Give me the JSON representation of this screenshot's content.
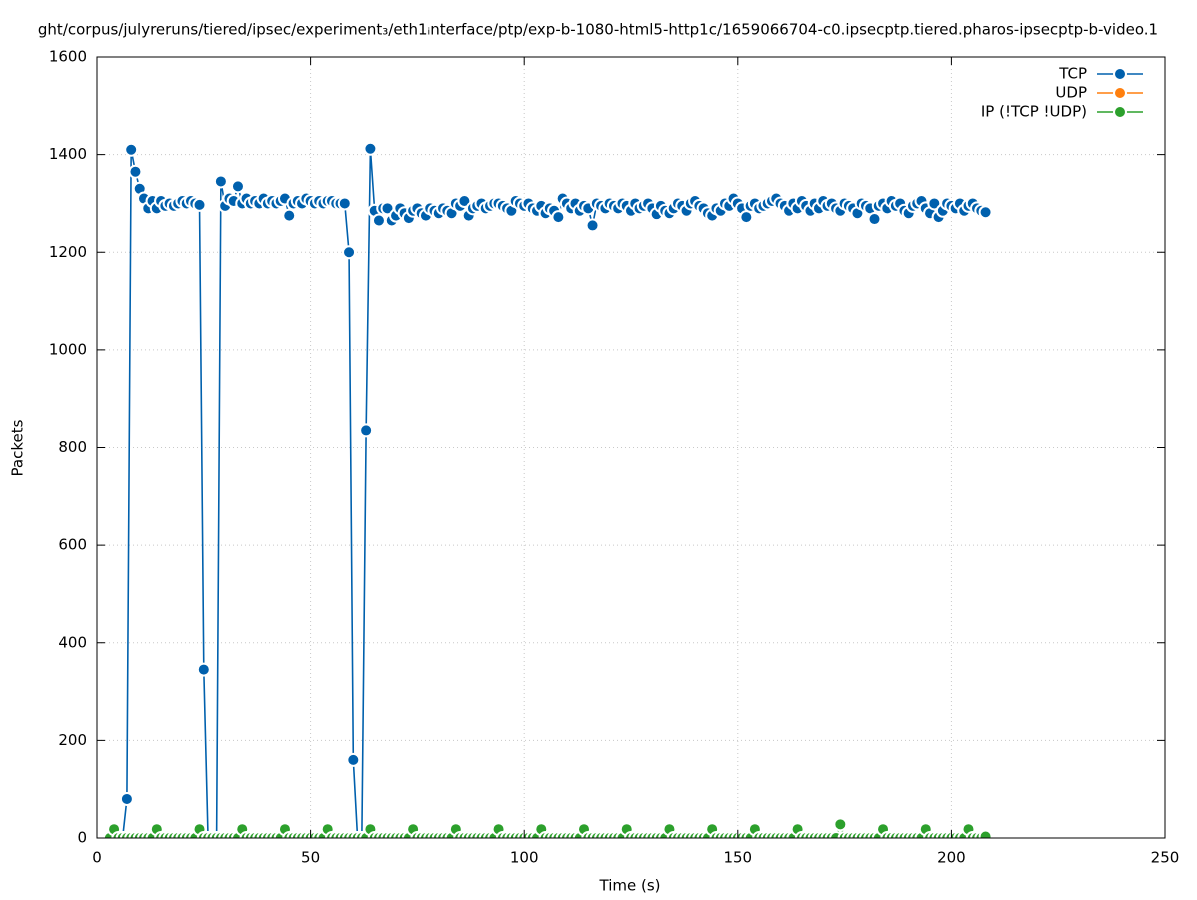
{
  "chart_data": {
    "type": "line",
    "title": "ght/corpus/julyreruns/tiered/ipsec/experiment₃/eth1ᵢnterface/ptp/exp-b-1080-html5-http1c/1659066704-c0.ipsecptp.tiered.pharos-ipsecptp-b-video.1",
    "x_label": "Time (s)",
    "y_label": "Packets",
    "xlim": [
      0,
      250
    ],
    "xticks": [
      0,
      50,
      100,
      150,
      200,
      250
    ],
    "ylim": [
      0,
      1600
    ],
    "yticks": [
      0,
      200,
      400,
      600,
      800,
      1000,
      1200,
      1400,
      1600
    ],
    "grid": true,
    "legend": "top-right",
    "x": [
      3,
      4,
      5,
      6,
      7,
      8,
      9,
      10,
      11,
      12,
      13,
      14,
      15,
      16,
      17,
      18,
      19,
      20,
      21,
      22,
      23,
      24,
      25,
      26,
      27,
      28,
      29,
      30,
      31,
      32,
      33,
      34,
      35,
      36,
      37,
      38,
      39,
      40,
      41,
      42,
      43,
      44,
      45,
      46,
      47,
      48,
      49,
      50,
      51,
      52,
      53,
      54,
      55,
      56,
      57,
      58,
      59,
      60,
      61,
      62,
      63,
      64,
      65,
      66,
      67,
      68,
      69,
      70,
      71,
      72,
      73,
      74,
      75,
      76,
      77,
      78,
      79,
      80,
      81,
      82,
      83,
      84,
      85,
      86,
      87,
      88,
      89,
      90,
      91,
      92,
      93,
      94,
      95,
      96,
      97,
      98,
      99,
      100,
      101,
      102,
      103,
      104,
      105,
      106,
      107,
      108,
      109,
      110,
      111,
      112,
      113,
      114,
      115,
      116,
      117,
      118,
      119,
      120,
      121,
      122,
      123,
      124,
      125,
      126,
      127,
      128,
      129,
      130,
      131,
      132,
      133,
      134,
      135,
      136,
      137,
      138,
      139,
      140,
      141,
      142,
      143,
      144,
      145,
      146,
      147,
      148,
      149,
      150,
      151,
      152,
      153,
      154,
      155,
      156,
      157,
      158,
      159,
      160,
      161,
      162,
      163,
      164,
      165,
      166,
      167,
      168,
      169,
      170,
      171,
      172,
      173,
      174,
      175,
      176,
      177,
      178,
      179,
      180,
      181,
      182,
      183,
      184,
      185,
      186,
      187,
      188,
      189,
      190,
      191,
      192,
      193,
      194,
      195,
      196,
      197,
      198,
      199,
      200,
      201,
      202,
      203,
      204,
      205,
      206,
      207,
      208
    ],
    "series": [
      {
        "name": "TCP",
        "color": "#0060ad",
        "values": [
          0,
          0,
          0,
          0,
          80,
          1410,
          1365,
          1330,
          1310,
          1290,
          1305,
          1290,
          1305,
          1295,
          1300,
          1295,
          1300,
          1305,
          1300,
          1305,
          1300,
          1297,
          345,
          0,
          0,
          0,
          1345,
          1295,
          1310,
          1305,
          1335,
          1300,
          1310,
          1300,
          1305,
          1300,
          1310,
          1300,
          1305,
          1300,
          1305,
          1310,
          1275,
          1300,
          1305,
          1300,
          1310,
          1305,
          1300,
          1305,
          1300,
          1305,
          1305,
          1300,
          1300,
          1300,
          1200,
          160,
          0,
          0,
          835,
          1412,
          1285,
          1265,
          1290,
          1290,
          1265,
          1275,
          1290,
          1280,
          1270,
          1285,
          1290,
          1280,
          1275,
          1290,
          1285,
          1280,
          1290,
          1285,
          1280,
          1300,
          1295,
          1305,
          1275,
          1290,
          1295,
          1300,
          1290,
          1295,
          1300,
          1300,
          1295,
          1290,
          1285,
          1305,
          1300,
          1295,
          1300,
          1290,
          1285,
          1295,
          1280,
          1290,
          1285,
          1272,
          1310,
          1300,
          1290,
          1300,
          1285,
          1295,
          1290,
          1255,
          1300,
          1295,
          1290,
          1300,
          1295,
          1290,
          1300,
          1295,
          1285,
          1300,
          1290,
          1295,
          1300,
          1290,
          1278,
          1295,
          1285,
          1280,
          1290,
          1300,
          1295,
          1285,
          1300,
          1305,
          1295,
          1290,
          1280,
          1275,
          1290,
          1285,
          1300,
          1295,
          1310,
          1300,
          1290,
          1272,
          1295,
          1300,
          1290,
          1295,
          1300,
          1305,
          1310,
          1300,
          1295,
          1285,
          1300,
          1290,
          1305,
          1295,
          1285,
          1300,
          1290,
          1305,
          1295,
          1300,
          1290,
          1285,
          1300,
          1295,
          1290,
          1280,
          1300,
          1295,
          1290,
          1268,
          1295,
          1300,
          1290,
          1305,
          1295,
          1300,
          1285,
          1280,
          1295,
          1300,
          1305,
          1290,
          1280,
          1300,
          1272,
          1285,
          1300,
          1295,
          1290,
          1300,
          1285,
          1295,
          1300,
          1290,
          1285,
          1282
        ]
      },
      {
        "name": "UDP",
        "color": "#ff7f0e",
        "values": [
          0,
          0,
          0,
          0,
          0,
          0,
          0,
          0,
          0,
          0,
          0,
          0,
          0,
          0,
          0,
          0,
          0,
          0,
          0,
          0,
          0,
          0,
          0,
          0,
          0,
          0,
          0,
          0,
          0,
          0,
          0,
          0,
          0,
          0,
          0,
          0,
          0,
          0,
          0,
          0,
          0,
          0,
          0,
          0,
          0,
          0,
          0,
          0,
          0,
          0,
          0,
          0,
          0,
          0,
          0,
          0,
          0,
          0,
          0,
          0,
          0,
          0,
          0,
          0,
          0,
          0,
          0,
          0,
          0,
          0,
          0,
          0,
          0,
          0,
          0,
          0,
          0,
          0,
          0,
          0,
          0,
          0,
          0,
          0,
          0,
          0,
          0,
          0,
          0,
          0,
          0,
          0,
          0,
          0,
          0,
          0,
          0,
          0,
          0,
          0,
          0,
          0,
          0,
          0,
          0,
          0,
          0,
          0,
          0,
          0,
          0,
          0,
          0,
          0,
          0,
          0,
          0,
          0,
          0,
          0,
          0,
          0,
          0,
          0,
          0,
          0,
          0,
          0,
          0,
          0,
          0,
          0,
          0,
          0,
          0,
          0,
          0,
          0,
          0,
          0,
          0,
          0,
          0,
          0,
          0,
          0,
          0,
          0,
          0,
          0,
          0,
          0,
          0,
          0,
          0,
          0,
          0,
          0,
          0,
          0,
          0,
          0,
          0,
          0,
          0,
          0,
          0,
          0,
          0,
          0,
          0,
          0,
          0,
          0,
          0,
          0,
          0,
          0,
          0,
          0,
          0,
          0,
          0,
          0,
          0,
          0,
          0,
          0,
          0,
          0,
          0,
          0,
          0,
          0,
          0,
          0,
          0,
          0,
          0,
          0,
          0,
          0,
          0,
          0,
          0,
          0
        ]
      },
      {
        "name": "IP (!TCP  !UDP)",
        "color": "#2ca02c",
        "values": [
          0,
          18,
          0,
          0,
          0,
          0,
          0,
          0,
          0,
          0,
          0,
          18,
          0,
          0,
          0,
          0,
          0,
          0,
          0,
          0,
          0,
          18,
          0,
          0,
          0,
          0,
          0,
          0,
          0,
          0,
          0,
          18,
          0,
          0,
          0,
          0,
          0,
          0,
          0,
          0,
          0,
          18,
          0,
          0,
          0,
          0,
          0,
          0,
          0,
          0,
          0,
          18,
          0,
          0,
          0,
          0,
          0,
          0,
          0,
          0,
          0,
          18,
          0,
          0,
          0,
          0,
          0,
          0,
          0,
          0,
          0,
          18,
          0,
          0,
          0,
          0,
          0,
          0,
          0,
          0,
          0,
          18,
          0,
          0,
          0,
          0,
          0,
          0,
          0,
          0,
          0,
          18,
          0,
          0,
          0,
          0,
          0,
          0,
          0,
          0,
          0,
          18,
          0,
          0,
          0,
          0,
          0,
          0,
          0,
          0,
          0,
          18,
          0,
          0,
          0,
          0,
          0,
          0,
          0,
          0,
          0,
          18,
          0,
          0,
          0,
          0,
          0,
          0,
          0,
          0,
          0,
          18,
          0,
          0,
          0,
          0,
          0,
          0,
          0,
          0,
          0,
          18,
          0,
          0,
          0,
          0,
          0,
          0,
          0,
          0,
          0,
          18,
          0,
          0,
          0,
          0,
          0,
          0,
          0,
          0,
          0,
          18,
          0,
          0,
          0,
          0,
          0,
          0,
          0,
          0,
          0,
          28,
          0,
          0,
          0,
          0,
          0,
          0,
          0,
          0,
          0,
          18,
          0,
          0,
          0,
          0,
          0,
          0,
          0,
          0,
          0,
          18,
          0,
          0,
          0,
          0,
          0,
          0,
          0,
          0,
          0,
          18,
          0,
          0,
          0,
          3
        ]
      }
    ]
  }
}
